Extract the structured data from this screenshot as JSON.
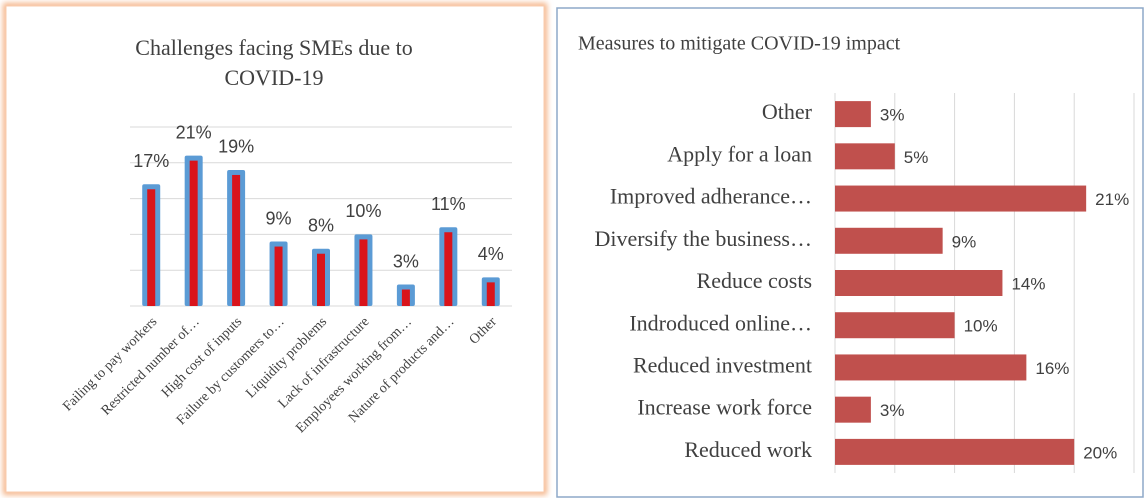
{
  "chart_data": [
    {
      "type": "column",
      "title": "Challenges facing SMEs due to COVID-19",
      "categories": [
        "Failing  to pay workers",
        "Restricted number of…",
        "High  cost of inputs",
        "Failure  by customers to…",
        "Liquidity problems",
        "Lack of infrastructure",
        "Employees working from…",
        "Nature of products and…",
        "Other"
      ],
      "values": [
        17,
        21,
        19,
        9,
        8,
        10,
        3,
        11,
        4
      ],
      "value_labels": [
        "17%",
        "21%",
        "19%",
        "9%",
        "8%",
        "10%",
        "3%",
        "11%",
        "4%"
      ],
      "color": "#d9141b",
      "border_color": "#5b9bd5",
      "ylim": [
        0,
        25
      ],
      "ygrid": [
        0,
        5,
        10,
        15,
        20,
        25
      ],
      "grid": true
    },
    {
      "type": "hbar",
      "title": "Measures to mitigate COVID-19 impact",
      "categories": [
        "Other",
        "Apply for a loan",
        "Improved adherance…",
        "Diversify the business…",
        "Reduce costs",
        "Indroduced online…",
        "Reduced investment",
        "Increase work force",
        "Reduced work"
      ],
      "values": [
        3,
        5,
        21,
        9,
        14,
        10,
        16,
        3,
        20
      ],
      "value_labels": [
        "3%",
        "5%",
        "21%",
        "9%",
        "14%",
        "10%",
        "16%",
        "3%",
        "20%"
      ],
      "color": "#c0504d",
      "xlim": [
        0,
        25
      ],
      "xgrid": [
        0,
        5,
        10,
        15,
        20,
        25
      ],
      "grid": true
    }
  ]
}
